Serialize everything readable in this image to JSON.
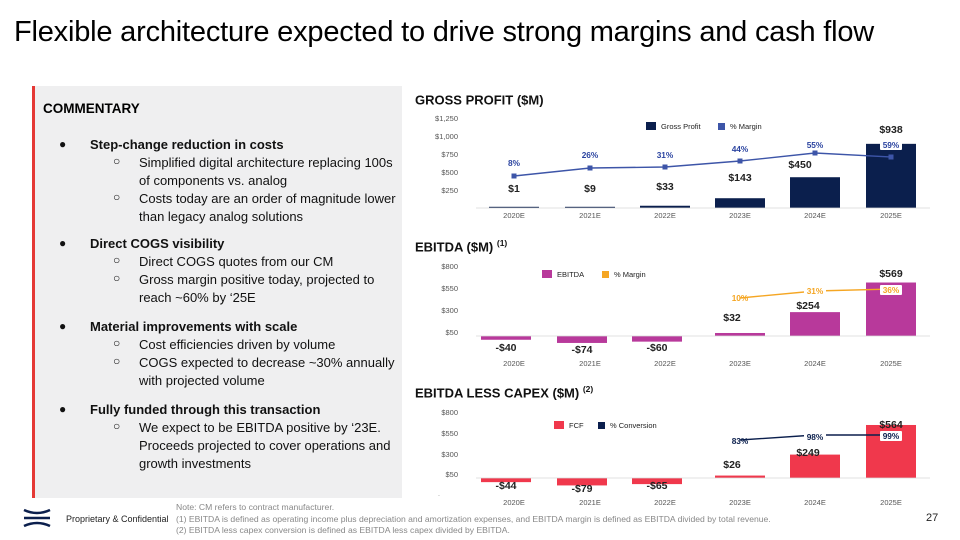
{
  "title": "Flexible architecture expected to drive strong margins and cash flow",
  "commentary": {
    "heading": "COMMENTARY",
    "bullets": [
      {
        "title": "Step-change reduction in costs",
        "subs": [
          "Simplified digital architecture replacing 100s of components vs. analog",
          "Costs today are an order of magnitude lower than legacy analog solutions"
        ]
      },
      {
        "title": "Direct COGS visibility",
        "subs": [
          "Direct COGS quotes from our CM",
          "Gross margin positive today, projected to reach ~60% by ‘25E"
        ]
      },
      {
        "title": "Material improvements with scale",
        "subs": [
          "Cost efficiencies driven by volume",
          "COGS expected to decrease ~30% annually with projected volume"
        ]
      },
      {
        "title": "Fully funded through this transaction",
        "subs": [
          "We expect to be EBITDA positive by ‘23E. Proceeds projected to cover operations and growth investments"
        ]
      }
    ]
  },
  "sections": {
    "gross_profit": {
      "title": "GROSS PROFIT ($M)",
      "sup": ""
    },
    "ebitda": {
      "title": "EBITDA ($M) ",
      "sup": "(1)"
    },
    "fcf": {
      "title": "EBITDA LESS CAPEX ($M) ",
      "sup": "(2)"
    }
  },
  "chart_data": [
    {
      "type": "bar",
      "title": "GROSS PROFIT ($M)",
      "categories": [
        "2020E",
        "2021E",
        "2022E",
        "2023E",
        "2024E",
        "2025E"
      ],
      "series": [
        {
          "name": "Gross Profit",
          "values": [
            1,
            9,
            33,
            143,
            450,
            938
          ],
          "labels": [
            "$1",
            "$9",
            "$33",
            "$143",
            "$450",
            "$938"
          ]
        },
        {
          "name": "% Margin",
          "values": [
            8,
            26,
            31,
            44,
            55,
            59
          ],
          "labels": [
            "8%",
            "26%",
            "31%",
            "44%",
            "55%",
            "59%"
          ]
        }
      ],
      "yticks": [
        "$1,250",
        "$1,000",
        "$750",
        "$500",
        "$250"
      ],
      "ylim": [
        0,
        1250
      ],
      "bar_color": "#0b1f4d",
      "line_color": "#3d55a8"
    },
    {
      "type": "bar",
      "title": "EBITDA ($M)",
      "categories": [
        "2020E",
        "2021E",
        "2022E",
        "2023E",
        "2024E",
        "2025E"
      ],
      "series": [
        {
          "name": "EBITDA",
          "values": [
            -40,
            -74,
            -60,
            32,
            254,
            569
          ],
          "labels": [
            "-$40",
            "-$74",
            "-$60",
            "$32",
            "$254",
            "$569"
          ]
        },
        {
          "name": "% Margin",
          "values": [
            null,
            null,
            null,
            10,
            31,
            36
          ],
          "labels": [
            "",
            "",
            "",
            "10%",
            "31%",
            "36%"
          ]
        }
      ],
      "yticks": [
        "$800",
        "$550",
        "$300",
        "$50"
      ],
      "ylim": [
        -100,
        800
      ],
      "bar_color": "#b8399b",
      "line_color": "#f5a623"
    },
    {
      "type": "bar",
      "title": "EBITDA LESS CAPEX ($M)",
      "categories": [
        "2020E",
        "2021E",
        "2022E",
        "2023E",
        "2024E",
        "2025E"
      ],
      "series": [
        {
          "name": "FCF",
          "values": [
            -44,
            -79,
            -65,
            26,
            249,
            564
          ],
          "labels": [
            "-$44",
            "-$79",
            "-$65",
            "$26",
            "$249",
            "$564"
          ]
        },
        {
          "name": "% Conversion",
          "values": [
            null,
            null,
            null,
            83,
            98,
            99
          ],
          "labels": [
            "",
            "",
            "",
            "83%",
            "98%",
            "99%"
          ]
        }
      ],
      "yticks": [
        "$800",
        "$550",
        "$300",
        "$50"
      ],
      "ylim": [
        -100,
        800
      ],
      "bar_color": "#f0384c",
      "line_color": "#0b1f4d"
    }
  ],
  "footer": {
    "text": "Proprietary  & Confidential",
    "page": "27",
    "notes": [
      "Note: CM refers to contract manufacturer.",
      "(1) EBITDA is defined as operating income plus depreciation and amortization expenses, and EBITDA margin is defined as EBITDA divided by total revenue.",
      "(2) EBITDA less capex conversion is defined as EBITDA less capex divided by EBITDA."
    ]
  },
  "colors": {
    "accent_red": "#e53935",
    "navy": "#0b1f4d"
  },
  "icons": {
    "logo": "company-logo-icon"
  }
}
